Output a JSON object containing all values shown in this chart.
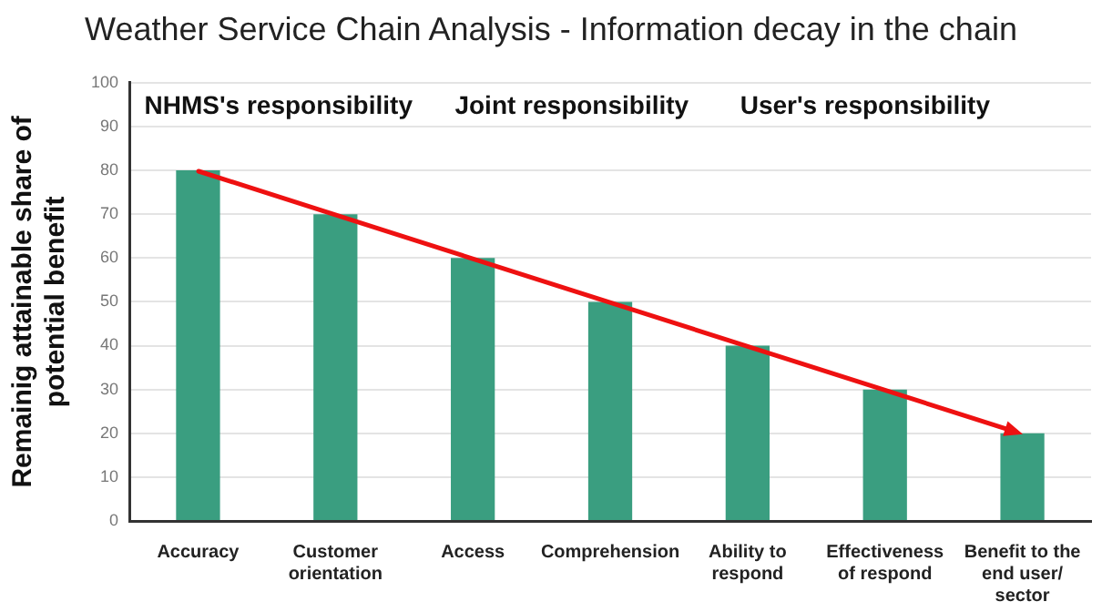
{
  "chart_data": {
    "type": "bar",
    "title": "Weather Service Chain Analysis - Information decay in the chain",
    "ylabel": "Remainig attainable share of potential benefit",
    "categories": [
      "Accuracy",
      "Customer orientation",
      "Access",
      "Comprehension",
      "Ability to respond",
      "Effectiveness of respond",
      "Benefit to the end user/ sector"
    ],
    "series": [
      {
        "color": "#3a9e80",
        "values": [
          80,
          70,
          60,
          50,
          40,
          30,
          20
        ]
      }
    ],
    "annotations": [
      "NHMS's responsibility",
      "Joint responsibility",
      "User's responsibility"
    ],
    "ylim": [
      0,
      100
    ],
    "yticks": [
      0,
      10,
      20,
      30,
      40,
      50,
      60,
      70,
      80,
      90,
      100
    ],
    "grid": "y",
    "legend": false
  }
}
